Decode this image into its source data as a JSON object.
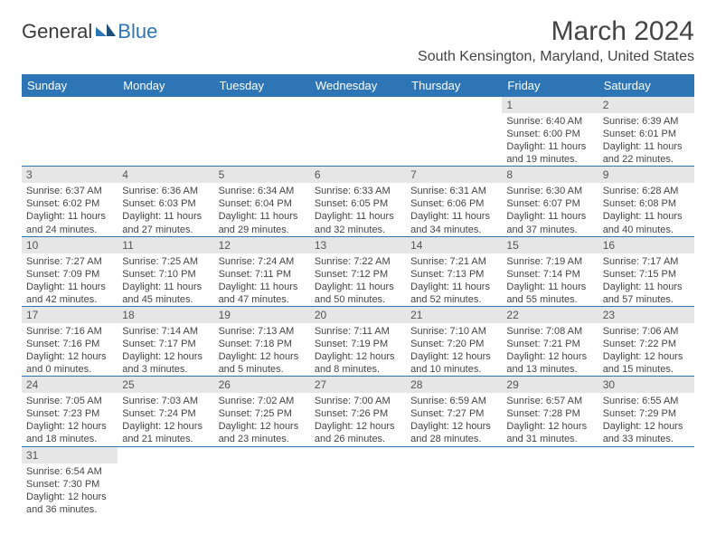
{
  "logo": {
    "text1": "General",
    "text2": "Blue"
  },
  "title": "March 2024",
  "location": "South Kensington, Maryland, United States",
  "colors": {
    "accent": "#2e75b6",
    "daybg": "#e6e6e6"
  },
  "weekdays": [
    "Sunday",
    "Monday",
    "Tuesday",
    "Wednesday",
    "Thursday",
    "Friday",
    "Saturday"
  ],
  "weeks": [
    [
      null,
      null,
      null,
      null,
      null,
      {
        "n": "1",
        "sr": "Sunrise: 6:40 AM",
        "ss": "Sunset: 6:00 PM",
        "d1": "Daylight: 11 hours",
        "d2": "and 19 minutes."
      },
      {
        "n": "2",
        "sr": "Sunrise: 6:39 AM",
        "ss": "Sunset: 6:01 PM",
        "d1": "Daylight: 11 hours",
        "d2": "and 22 minutes."
      }
    ],
    [
      {
        "n": "3",
        "sr": "Sunrise: 6:37 AM",
        "ss": "Sunset: 6:02 PM",
        "d1": "Daylight: 11 hours",
        "d2": "and 24 minutes."
      },
      {
        "n": "4",
        "sr": "Sunrise: 6:36 AM",
        "ss": "Sunset: 6:03 PM",
        "d1": "Daylight: 11 hours",
        "d2": "and 27 minutes."
      },
      {
        "n": "5",
        "sr": "Sunrise: 6:34 AM",
        "ss": "Sunset: 6:04 PM",
        "d1": "Daylight: 11 hours",
        "d2": "and 29 minutes."
      },
      {
        "n": "6",
        "sr": "Sunrise: 6:33 AM",
        "ss": "Sunset: 6:05 PM",
        "d1": "Daylight: 11 hours",
        "d2": "and 32 minutes."
      },
      {
        "n": "7",
        "sr": "Sunrise: 6:31 AM",
        "ss": "Sunset: 6:06 PM",
        "d1": "Daylight: 11 hours",
        "d2": "and 34 minutes."
      },
      {
        "n": "8",
        "sr": "Sunrise: 6:30 AM",
        "ss": "Sunset: 6:07 PM",
        "d1": "Daylight: 11 hours",
        "d2": "and 37 minutes."
      },
      {
        "n": "9",
        "sr": "Sunrise: 6:28 AM",
        "ss": "Sunset: 6:08 PM",
        "d1": "Daylight: 11 hours",
        "d2": "and 40 minutes."
      }
    ],
    [
      {
        "n": "10",
        "sr": "Sunrise: 7:27 AM",
        "ss": "Sunset: 7:09 PM",
        "d1": "Daylight: 11 hours",
        "d2": "and 42 minutes."
      },
      {
        "n": "11",
        "sr": "Sunrise: 7:25 AM",
        "ss": "Sunset: 7:10 PM",
        "d1": "Daylight: 11 hours",
        "d2": "and 45 minutes."
      },
      {
        "n": "12",
        "sr": "Sunrise: 7:24 AM",
        "ss": "Sunset: 7:11 PM",
        "d1": "Daylight: 11 hours",
        "d2": "and 47 minutes."
      },
      {
        "n": "13",
        "sr": "Sunrise: 7:22 AM",
        "ss": "Sunset: 7:12 PM",
        "d1": "Daylight: 11 hours",
        "d2": "and 50 minutes."
      },
      {
        "n": "14",
        "sr": "Sunrise: 7:21 AM",
        "ss": "Sunset: 7:13 PM",
        "d1": "Daylight: 11 hours",
        "d2": "and 52 minutes."
      },
      {
        "n": "15",
        "sr": "Sunrise: 7:19 AM",
        "ss": "Sunset: 7:14 PM",
        "d1": "Daylight: 11 hours",
        "d2": "and 55 minutes."
      },
      {
        "n": "16",
        "sr": "Sunrise: 7:17 AM",
        "ss": "Sunset: 7:15 PM",
        "d1": "Daylight: 11 hours",
        "d2": "and 57 minutes."
      }
    ],
    [
      {
        "n": "17",
        "sr": "Sunrise: 7:16 AM",
        "ss": "Sunset: 7:16 PM",
        "d1": "Daylight: 12 hours",
        "d2": "and 0 minutes."
      },
      {
        "n": "18",
        "sr": "Sunrise: 7:14 AM",
        "ss": "Sunset: 7:17 PM",
        "d1": "Daylight: 12 hours",
        "d2": "and 3 minutes."
      },
      {
        "n": "19",
        "sr": "Sunrise: 7:13 AM",
        "ss": "Sunset: 7:18 PM",
        "d1": "Daylight: 12 hours",
        "d2": "and 5 minutes."
      },
      {
        "n": "20",
        "sr": "Sunrise: 7:11 AM",
        "ss": "Sunset: 7:19 PM",
        "d1": "Daylight: 12 hours",
        "d2": "and 8 minutes."
      },
      {
        "n": "21",
        "sr": "Sunrise: 7:10 AM",
        "ss": "Sunset: 7:20 PM",
        "d1": "Daylight: 12 hours",
        "d2": "and 10 minutes."
      },
      {
        "n": "22",
        "sr": "Sunrise: 7:08 AM",
        "ss": "Sunset: 7:21 PM",
        "d1": "Daylight: 12 hours",
        "d2": "and 13 minutes."
      },
      {
        "n": "23",
        "sr": "Sunrise: 7:06 AM",
        "ss": "Sunset: 7:22 PM",
        "d1": "Daylight: 12 hours",
        "d2": "and 15 minutes."
      }
    ],
    [
      {
        "n": "24",
        "sr": "Sunrise: 7:05 AM",
        "ss": "Sunset: 7:23 PM",
        "d1": "Daylight: 12 hours",
        "d2": "and 18 minutes."
      },
      {
        "n": "25",
        "sr": "Sunrise: 7:03 AM",
        "ss": "Sunset: 7:24 PM",
        "d1": "Daylight: 12 hours",
        "d2": "and 21 minutes."
      },
      {
        "n": "26",
        "sr": "Sunrise: 7:02 AM",
        "ss": "Sunset: 7:25 PM",
        "d1": "Daylight: 12 hours",
        "d2": "and 23 minutes."
      },
      {
        "n": "27",
        "sr": "Sunrise: 7:00 AM",
        "ss": "Sunset: 7:26 PM",
        "d1": "Daylight: 12 hours",
        "d2": "and 26 minutes."
      },
      {
        "n": "28",
        "sr": "Sunrise: 6:59 AM",
        "ss": "Sunset: 7:27 PM",
        "d1": "Daylight: 12 hours",
        "d2": "and 28 minutes."
      },
      {
        "n": "29",
        "sr": "Sunrise: 6:57 AM",
        "ss": "Sunset: 7:28 PM",
        "d1": "Daylight: 12 hours",
        "d2": "and 31 minutes."
      },
      {
        "n": "30",
        "sr": "Sunrise: 6:55 AM",
        "ss": "Sunset: 7:29 PM",
        "d1": "Daylight: 12 hours",
        "d2": "and 33 minutes."
      }
    ],
    [
      {
        "n": "31",
        "sr": "Sunrise: 6:54 AM",
        "ss": "Sunset: 7:30 PM",
        "d1": "Daylight: 12 hours",
        "d2": "and 36 minutes."
      },
      null,
      null,
      null,
      null,
      null,
      null
    ]
  ]
}
